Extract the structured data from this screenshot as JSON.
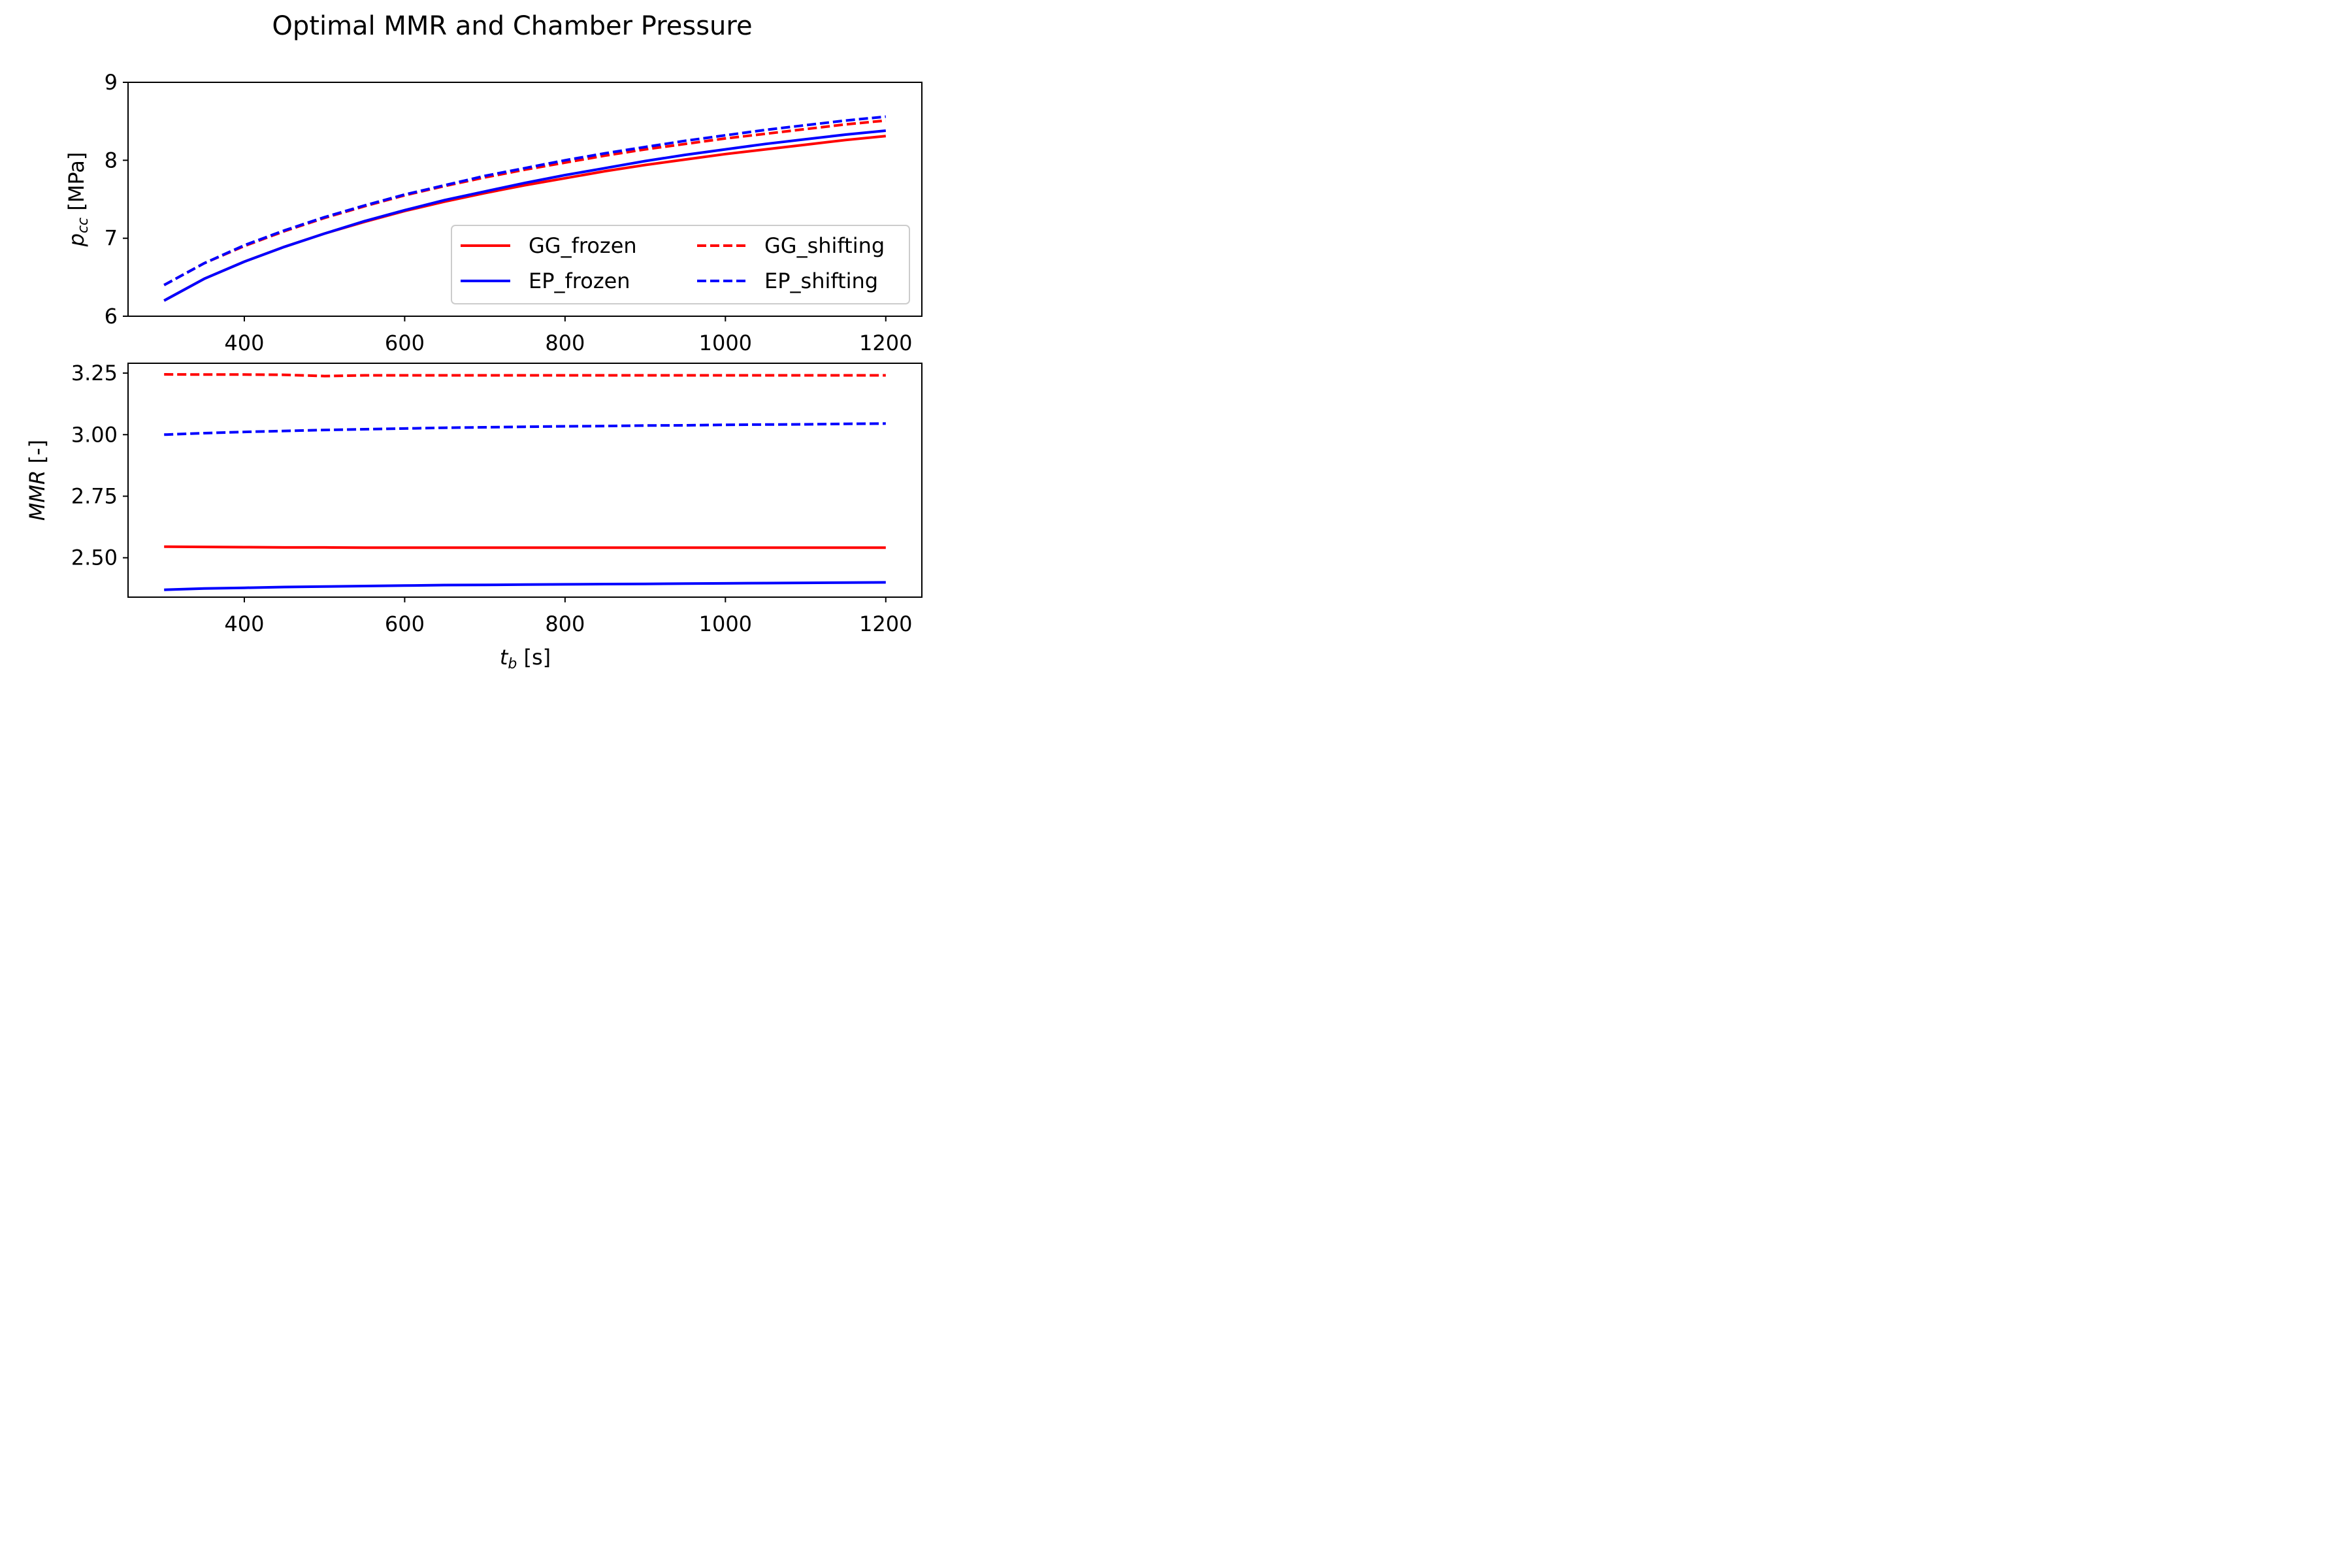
{
  "figure": {
    "title": "Optimal MMR and Chamber Pressure"
  },
  "chart_data": [
    {
      "type": "line",
      "title": "",
      "xlabel": "",
      "ylabel_main": "p",
      "ylabel_sub": "cc",
      "ylabel_unit": " [MPa]",
      "xlim": [
        255,
        1245
      ],
      "ylim": [
        6,
        9
      ],
      "xticks": [
        400,
        600,
        800,
        1000,
        1200
      ],
      "xtick_labels": [
        "400",
        "600",
        "800",
        "1000",
        "1200"
      ],
      "yticks": [
        6,
        7,
        8,
        9
      ],
      "ytick_labels": [
        "6",
        "7",
        "8",
        "9"
      ],
      "grid": false,
      "legend_position": "lower-right",
      "x": [
        300,
        350,
        400,
        450,
        500,
        550,
        600,
        650,
        700,
        750,
        800,
        850,
        900,
        950,
        1000,
        1050,
        1100,
        1150,
        1200
      ],
      "series": [
        {
          "name": "GG_frozen",
          "color": "#ff0000",
          "style": "solid",
          "values": [
            6.2,
            6.48,
            6.7,
            6.89,
            7.06,
            7.21,
            7.35,
            7.47,
            7.58,
            7.68,
            7.77,
            7.86,
            7.94,
            8.01,
            8.08,
            8.14,
            8.2,
            8.26,
            8.31
          ]
        },
        {
          "name": "GG_shifting",
          "color": "#ff0000",
          "style": "dashed",
          "values": [
            6.4,
            6.68,
            6.9,
            7.09,
            7.26,
            7.41,
            7.55,
            7.67,
            7.78,
            7.88,
            7.97,
            8.06,
            8.14,
            8.21,
            8.28,
            8.34,
            8.4,
            8.46,
            8.51
          ]
        },
        {
          "name": "EP_frozen",
          "color": "#0000ff",
          "style": "solid",
          "values": [
            6.2,
            6.48,
            6.7,
            6.89,
            7.06,
            7.22,
            7.36,
            7.49,
            7.6,
            7.71,
            7.81,
            7.9,
            7.99,
            8.07,
            8.14,
            8.21,
            8.27,
            8.33,
            8.38
          ]
        },
        {
          "name": "EP_shifting",
          "color": "#0000ff",
          "style": "dashed",
          "values": [
            6.4,
            6.68,
            6.91,
            7.1,
            7.27,
            7.42,
            7.56,
            7.68,
            7.8,
            7.9,
            8.0,
            8.09,
            8.17,
            8.25,
            8.32,
            8.39,
            8.45,
            8.51,
            8.56
          ]
        }
      ]
    },
    {
      "type": "line",
      "title": "",
      "xlabel_main": "t",
      "xlabel_sub": "b",
      "xlabel_unit": " [s]",
      "ylabel_main": "MMR",
      "ylabel_unit": " [-]",
      "xlim": [
        255,
        1245
      ],
      "ylim": [
        2.34,
        3.29
      ],
      "xticks": [
        400,
        600,
        800,
        1000,
        1200
      ],
      "xtick_labels": [
        "400",
        "600",
        "800",
        "1000",
        "1200"
      ],
      "yticks": [
        2.5,
        2.75,
        3.0,
        3.25
      ],
      "ytick_labels": [
        "2.50",
        "2.75",
        "3.00",
        "3.25"
      ],
      "grid": false,
      "x": [
        300,
        350,
        400,
        450,
        500,
        550,
        600,
        650,
        700,
        750,
        800,
        850,
        900,
        950,
        1000,
        1050,
        1100,
        1150,
        1200
      ],
      "series": [
        {
          "name": "GG_frozen",
          "color": "#ff0000",
          "style": "solid",
          "values": [
            2.545,
            2.544,
            2.543,
            2.542,
            2.542,
            2.541,
            2.541,
            2.541,
            2.541,
            2.541,
            2.541,
            2.541,
            2.541,
            2.541,
            2.541,
            2.541,
            2.541,
            2.541,
            2.541
          ]
        },
        {
          "name": "GG_shifting",
          "color": "#ff0000",
          "style": "dashed",
          "values": [
            3.245,
            3.244,
            3.244,
            3.243,
            3.238,
            3.241,
            3.241,
            3.241,
            3.241,
            3.241,
            3.241,
            3.241,
            3.241,
            3.241,
            3.241,
            3.241,
            3.241,
            3.241,
            3.241
          ]
        },
        {
          "name": "EP_frozen",
          "color": "#0000ff",
          "style": "solid",
          "values": [
            2.37,
            2.375,
            2.378,
            2.381,
            2.383,
            2.385,
            2.387,
            2.389,
            2.39,
            2.391,
            2.392,
            2.393,
            2.394,
            2.395,
            2.396,
            2.397,
            2.398,
            2.399,
            2.4
          ]
        },
        {
          "name": "EP_shifting",
          "color": "#0000ff",
          "style": "dashed",
          "values": [
            3.0,
            3.006,
            3.011,
            3.015,
            3.019,
            3.022,
            3.025,
            3.028,
            3.03,
            3.032,
            3.034,
            3.035,
            3.037,
            3.038,
            3.04,
            3.041,
            3.042,
            3.044,
            3.045
          ]
        }
      ]
    }
  ]
}
